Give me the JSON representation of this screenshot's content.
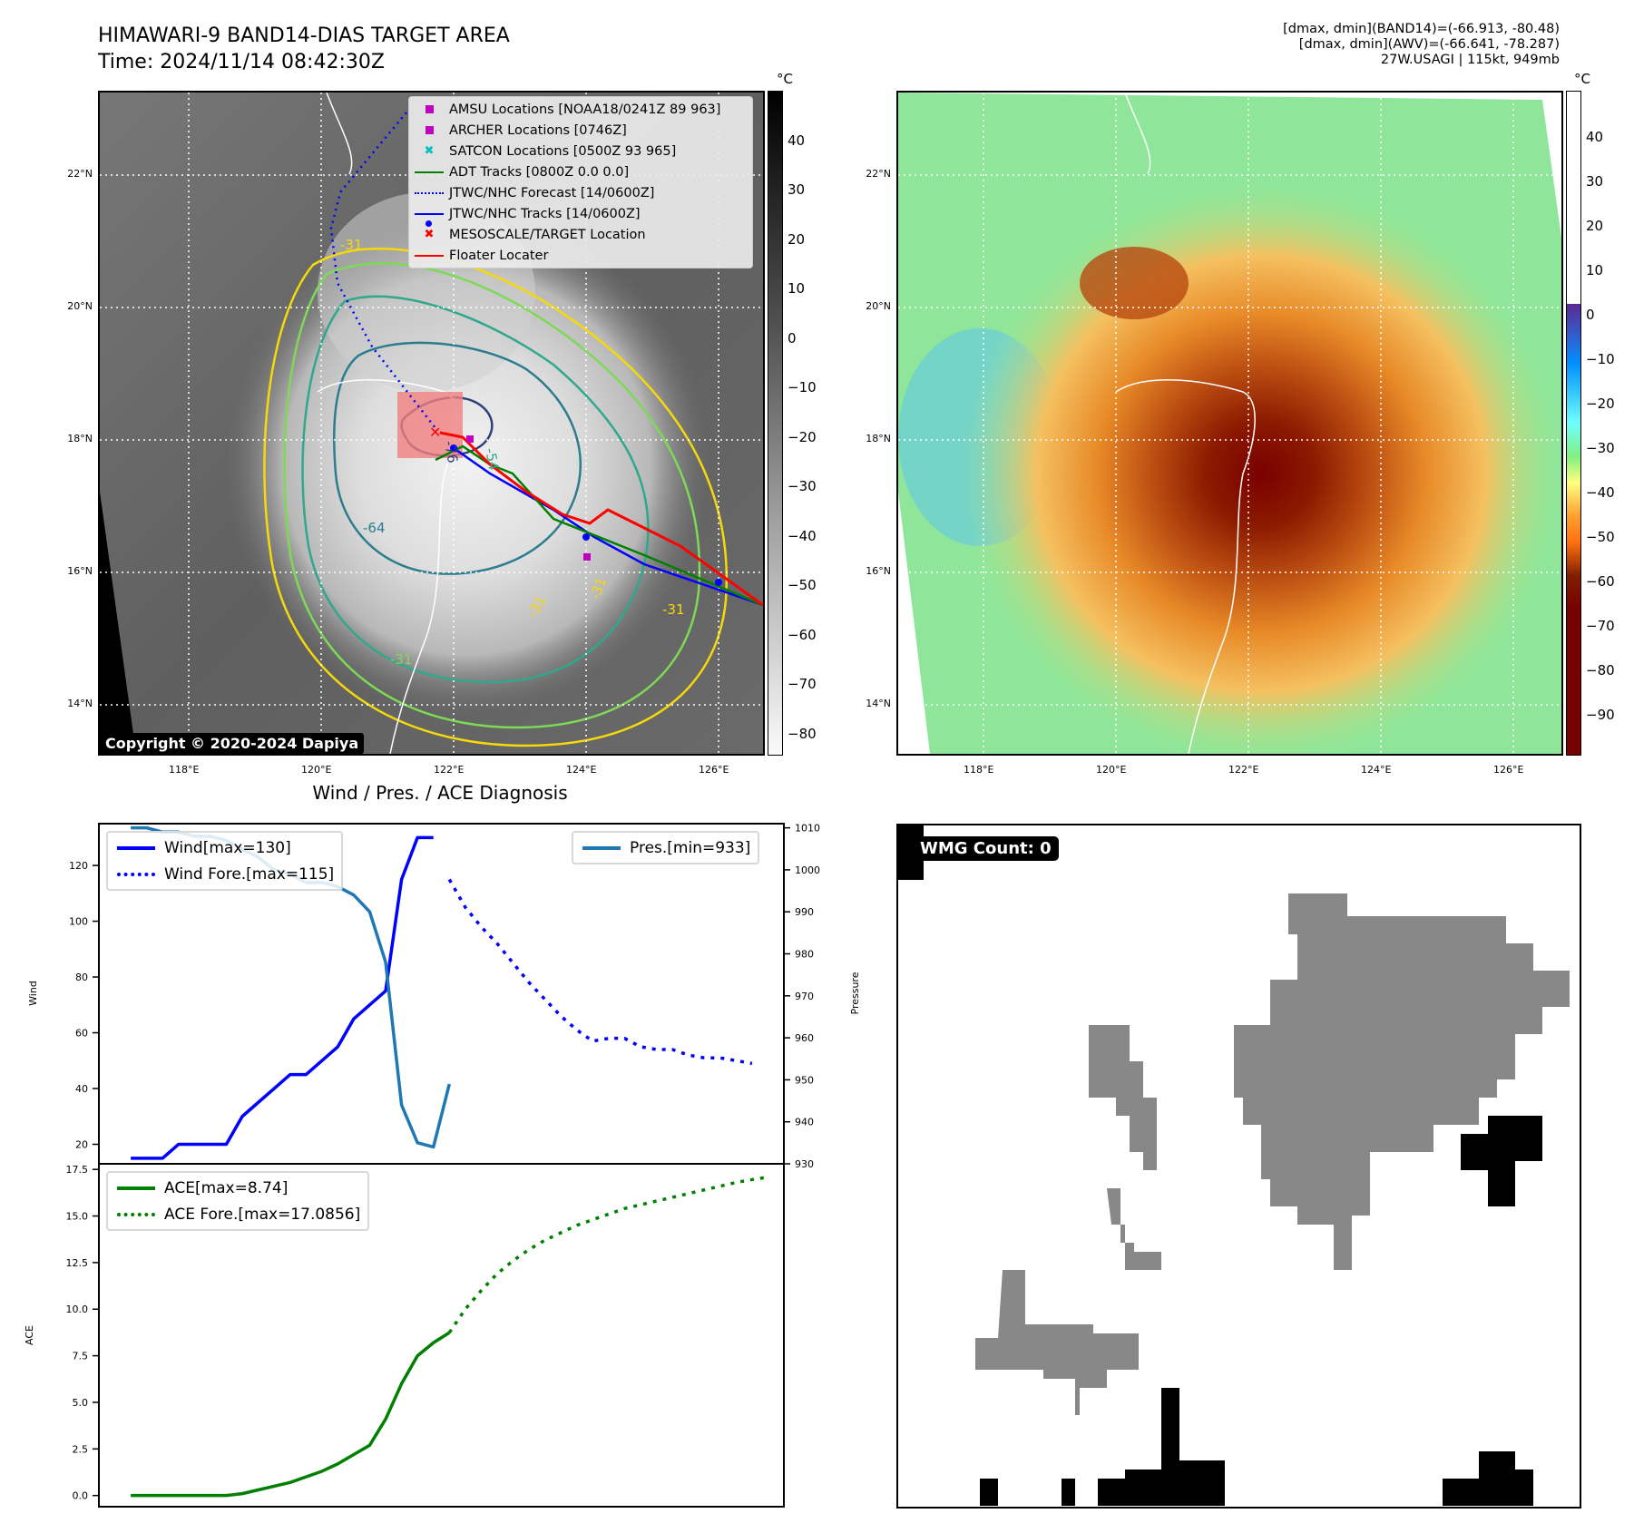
{
  "header": {
    "title": "HIMAWARI-9 BAND14-DIAS TARGET AREA",
    "time": "Time: 2024/11/14 08:42:30Z",
    "info_lines": [
      "[dmax, dmin](BAND14)=(-66.913, -80.48)",
      "[dmax, dmin](AWV)=(-66.641, -78.287)",
      "27W.USAGI | 115kt, 949mb"
    ]
  },
  "maps": {
    "lat_labels": [
      "22°N",
      "20°N",
      "18°N",
      "16°N",
      "14°N"
    ],
    "lon_labels": [
      "118°E",
      "120°E",
      "122°E",
      "124°E",
      "126°E"
    ],
    "copyright": "Copyright © 2020-2024 Dapiya",
    "contour_labels": [
      "-31",
      "-54",
      "-64",
      "-76",
      "-31",
      "-31",
      "-31",
      "-31"
    ],
    "legend": [
      {
        "label": "AMSU Locations [NOAA18/0241Z 89 963]",
        "symbol": "square",
        "color": "#c000c0"
      },
      {
        "label": "ARCHER Locations [0746Z]",
        "symbol": "square",
        "color": "#c000c0"
      },
      {
        "label": "SATCON Locations [0500Z 93 965]",
        "symbol": "x",
        "color": "#00c0c0"
      },
      {
        "label": "ADT Tracks [0800Z 0.0 0.0]",
        "symbol": "line",
        "color": "#008000"
      },
      {
        "label": "JTWC/NHC Forecast [14/0600Z]",
        "symbol": "dotted",
        "color": "#0000ff"
      },
      {
        "label": "JTWC/NHC Tracks [14/0600Z]",
        "symbol": "line-dot",
        "color": "#0000ff"
      },
      {
        "label": "MESOSCALE/TARGET Location",
        "symbol": "x",
        "color": "#ff0000"
      },
      {
        "label": "Floater Locater",
        "symbol": "line",
        "color": "#ff0000"
      }
    ],
    "left_colorbar": {
      "unit": "°C",
      "ticks": [
        "40",
        "30",
        "20",
        "10",
        "0",
        "−10",
        "−20",
        "−30",
        "−40",
        "−50",
        "−60",
        "−70",
        "−80"
      ]
    },
    "right_colorbar": {
      "unit": "°C",
      "ticks": [
        "40",
        "30",
        "20",
        "10",
        "0",
        "−10",
        "−20",
        "−30",
        "−40",
        "−50",
        "−60",
        "−70",
        "−80",
        "−90"
      ]
    }
  },
  "wmg": {
    "label": "WMG Count: 0"
  },
  "chart_data": [
    {
      "type": "line",
      "title": "Wind / Pres. / ACE Diagnosis",
      "ylabel": "Wind",
      "y2label": "Pressure",
      "ylim": [
        13,
        135
      ],
      "y2lim": [
        930,
        1011
      ],
      "yticks": [
        "120",
        "100",
        "80",
        "60",
        "40",
        "20"
      ],
      "y2ticks": [
        "1010",
        "1000",
        "990",
        "980",
        "970",
        "960",
        "950",
        "940",
        "930"
      ],
      "series": [
        {
          "name": "Wind[max=130]",
          "axis": "left",
          "style": "solid",
          "color": "#0000ff",
          "x": [
            0,
            1,
            2,
            3,
            4,
            5,
            6,
            7,
            8,
            9,
            10,
            11,
            12,
            13,
            14,
            15,
            16,
            17,
            18,
            19
          ],
          "values": [
            15,
            15,
            15,
            20,
            20,
            20,
            20,
            30,
            35,
            40,
            45,
            45,
            50,
            55,
            65,
            70,
            75,
            115,
            130,
            130
          ]
        },
        {
          "name": "Wind Fore.[max=115]",
          "axis": "left",
          "style": "dotted",
          "color": "#0000ff",
          "x": [
            20,
            21,
            22,
            23,
            24,
            25,
            26,
            27,
            28,
            29,
            30,
            31,
            32,
            33,
            34,
            35,
            36,
            37,
            38,
            39
          ],
          "values": [
            115,
            105,
            98,
            92,
            85,
            78,
            72,
            66,
            61,
            57,
            58,
            58,
            55,
            54,
            54,
            52,
            51,
            51,
            50,
            49
          ]
        },
        {
          "name": "Pres.[min=933]",
          "axis": "right",
          "style": "solid",
          "color": "#1f77b4",
          "x": [
            0,
            1,
            2,
            3,
            4,
            5,
            6,
            7,
            8,
            9,
            10,
            11,
            12,
            13,
            14,
            15,
            16,
            17,
            18,
            19,
            20
          ],
          "values": [
            1010,
            1010,
            1009,
            1009,
            1008,
            1008,
            1007,
            1005,
            1003,
            1000,
            999,
            997,
            997,
            996,
            994,
            990,
            978,
            944,
            935,
            934,
            949
          ]
        }
      ]
    },
    {
      "type": "line",
      "ylabel": "ACE",
      "ylim": [
        -0.6,
        17.8
      ],
      "yticks": [
        "17.5",
        "15.0",
        "12.5",
        "10.0",
        "7.5",
        "5.0",
        "2.5",
        "0.0"
      ],
      "series": [
        {
          "name": "ACE[max=8.74]",
          "style": "solid",
          "color": "#008000",
          "x": [
            0,
            1,
            2,
            3,
            4,
            5,
            6,
            7,
            8,
            9,
            10,
            11,
            12,
            13,
            14,
            15,
            16,
            17,
            18,
            19,
            20
          ],
          "values": [
            0,
            0,
            0,
            0,
            0,
            0,
            0,
            0.1,
            0.3,
            0.5,
            0.7,
            1.0,
            1.3,
            1.7,
            2.2,
            2.7,
            4.1,
            6.0,
            7.5,
            8.2,
            8.74
          ]
        },
        {
          "name": "ACE Fore.[max=17.0856]",
          "style": "dotted",
          "color": "#008000",
          "x": [
            20,
            21,
            22,
            23,
            24,
            25,
            26,
            27,
            28,
            29,
            30,
            31,
            32,
            33,
            34,
            35,
            36,
            37,
            38,
            39,
            40
          ],
          "values": [
            8.74,
            10.0,
            11.0,
            11.9,
            12.6,
            13.2,
            13.7,
            14.1,
            14.5,
            14.8,
            15.1,
            15.4,
            15.6,
            15.8,
            16.0,
            16.2,
            16.4,
            16.6,
            16.8,
            16.95,
            17.0856
          ]
        }
      ]
    }
  ]
}
